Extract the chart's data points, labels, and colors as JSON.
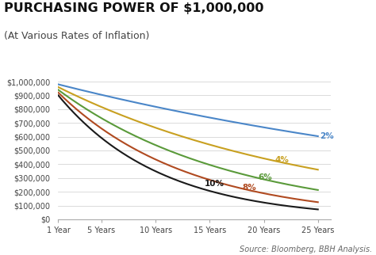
{
  "title": "PURCHASING POWER OF $1,000,000",
  "subtitle": "(At Various Rates of Inflation)",
  "source": "Source: Bloomberg, BBH Analysis.",
  "initial_value": 1000000,
  "rates": [
    0.02,
    0.04,
    0.06,
    0.08,
    0.1
  ],
  "rate_labels": [
    "2%",
    "4%",
    "6%",
    "8%",
    "10%"
  ],
  "line_colors": [
    "#4a86c8",
    "#c8a020",
    "#5a9a3a",
    "#b04a20",
    "#1a1a1a"
  ],
  "label_colors": [
    "#4a86c8",
    "#c8a020",
    "#5a9a3a",
    "#b04a20",
    "#1a1a1a"
  ],
  "label_positions_x": [
    25.5,
    21.0,
    19.5,
    18.0,
    14.5
  ],
  "label_positions_years": [
    25,
    21,
    19.5,
    18.0,
    14.5
  ],
  "x_ticks": [
    1,
    5,
    10,
    15,
    20,
    25
  ],
  "x_tick_labels": [
    "1 Year",
    "5 Years",
    "10 Years",
    "15 Years",
    "20 Years",
    "25 Years"
  ],
  "ylim": [
    0,
    1000000
  ],
  "y_ticks": [
    0,
    100000,
    200000,
    300000,
    400000,
    500000,
    600000,
    700000,
    800000,
    900000,
    1000000
  ],
  "y_tick_labels": [
    "$0",
    "$100,000",
    "$200,000",
    "$300,000",
    "$400,000",
    "$500,000",
    "$600,000",
    "$700,000",
    "$800,000",
    "$900,000",
    "$1,000,000"
  ],
  "background_color": "#ffffff",
  "title_fontsize": 11.5,
  "subtitle_fontsize": 9,
  "label_fontsize": 7.5,
  "source_fontsize": 7,
  "tick_fontsize": 7
}
